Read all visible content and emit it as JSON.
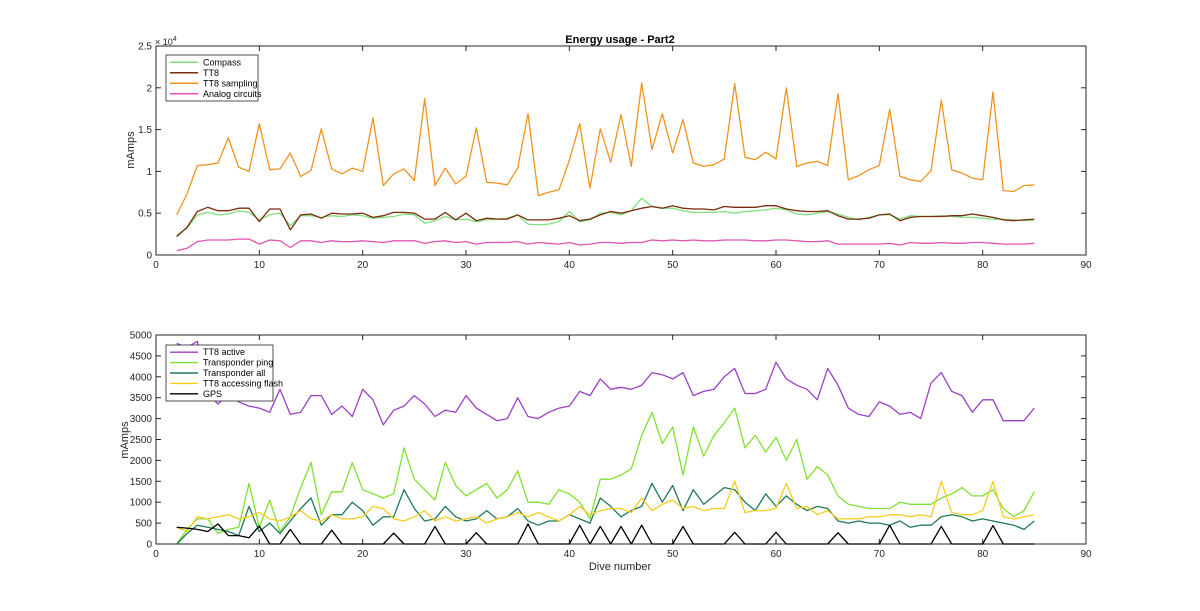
{
  "chart_data": [
    {
      "type": "line",
      "title": "Energy usage - Part2",
      "xlabel": "",
      "ylabel": "mAmps",
      "xlim": [
        0,
        90
      ],
      "ylim": [
        0,
        25000
      ],
      "xticks": [
        0,
        10,
        20,
        30,
        40,
        50,
        60,
        70,
        80,
        90
      ],
      "yticks": [
        0,
        5000,
        10000,
        15000,
        20000,
        25000
      ],
      "ytick_labels": [
        "0",
        "0.5",
        "1",
        "1.5",
        "2",
        "2.5"
      ],
      "y_exponent_label": "× 10",
      "y_exponent_power": "4",
      "legend_position": "top-left",
      "grid": false,
      "x": [
        2,
        3,
        4,
        5,
        6,
        7,
        8,
        9,
        10,
        11,
        12,
        13,
        14,
        15,
        16,
        17,
        18,
        19,
        20,
        21,
        22,
        23,
        24,
        25,
        26,
        27,
        28,
        29,
        30,
        31,
        32,
        33,
        34,
        35,
        36,
        37,
        38,
        39,
        40,
        41,
        42,
        43,
        44,
        45,
        46,
        47,
        48,
        49,
        50,
        51,
        52,
        53,
        54,
        55,
        56,
        57,
        58,
        59,
        60,
        61,
        62,
        63,
        64,
        65,
        66,
        67,
        68,
        69,
        70,
        71,
        72,
        73,
        74,
        75,
        76,
        77,
        78,
        79,
        80,
        81,
        82,
        83,
        84,
        85
      ],
      "series": [
        {
          "name": "Compass",
          "color": "#7fe07f",
          "values": [
            2400,
            3200,
            4800,
            5100,
            4800,
            4900,
            5300,
            5100,
            4200,
            4800,
            5000,
            3500,
            4700,
            4700,
            4500,
            4700,
            4600,
            4800,
            4700,
            4400,
            4500,
            4600,
            4900,
            4800,
            3800,
            4100,
            4600,
            4200,
            4300,
            4000,
            4200,
            4300,
            4400,
            4800,
            3700,
            3600,
            3700,
            4000,
            5200,
            4000,
            4200,
            5000,
            5100,
            4800,
            5300,
            6800,
            5800,
            5600,
            5600,
            5300,
            5100,
            5100,
            5100,
            5200,
            5000,
            5200,
            5300,
            5400,
            5600,
            5400,
            4900,
            4800,
            5000,
            5200,
            4900,
            4500,
            4200,
            4500,
            4800,
            4800,
            4300,
            4700,
            4600,
            4600,
            4700,
            4600,
            4500,
            4500,
            4400,
            4300,
            4300,
            4200,
            4100,
            4200
          ]
        },
        {
          "name": "TT8",
          "color": "#7b2c0f",
          "values": [
            2200,
            3300,
            5200,
            5700,
            5300,
            5300,
            5600,
            5600,
            4000,
            5500,
            5500,
            3000,
            4800,
            4900,
            4400,
            5000,
            4900,
            4900,
            5000,
            4500,
            4700,
            5100,
            5100,
            5000,
            4300,
            4300,
            5100,
            4200,
            5000,
            4100,
            4400,
            4300,
            4300,
            4800,
            4200,
            4200,
            4200,
            4400,
            4700,
            4100,
            4300,
            4800,
            5200,
            5000,
            5300,
            5600,
            5800,
            5600,
            5900,
            5600,
            5500,
            5500,
            5400,
            5800,
            5700,
            5700,
            5700,
            5900,
            5900,
            5500,
            5300,
            5200,
            5200,
            5300,
            4700,
            4300,
            4300,
            4400,
            4800,
            4900,
            4100,
            4500,
            4600,
            4600,
            4600,
            4700,
            4700,
            4900,
            4700,
            4500,
            4200,
            4100,
            4200,
            4300
          ]
        },
        {
          "name": "TT8 sampling",
          "color": "#f0931e",
          "values": [
            4800,
            7300,
            10700,
            10800,
            11000,
            14000,
            10500,
            10000,
            15700,
            10200,
            10300,
            12200,
            9400,
            10100,
            15100,
            10300,
            9700,
            10400,
            10000,
            16400,
            8300,
            9700,
            10300,
            8900,
            18700,
            8300,
            10400,
            8500,
            9400,
            15200,
            8700,
            8600,
            8400,
            10400,
            16900,
            7100,
            7500,
            7800,
            11300,
            15700,
            8000,
            15100,
            11100,
            16800,
            10600,
            20600,
            12600,
            16900,
            12200,
            16200,
            11000,
            10600,
            10800,
            11500,
            20500,
            11700,
            11400,
            12300,
            11500,
            20000,
            10600,
            11000,
            11200,
            10700,
            19300,
            9000,
            9500,
            10200,
            10700,
            17400,
            9400,
            9000,
            8800,
            10100,
            18500,
            10200,
            9800,
            9200,
            9000,
            19500,
            7700,
            7600,
            8300,
            8400
          ]
        },
        {
          "name": "Analog circuits",
          "color": "#e055b0",
          "values": [
            500,
            800,
            1600,
            1800,
            1800,
            1800,
            1900,
            1900,
            1300,
            1800,
            1700,
            900,
            1700,
            1700,
            1500,
            1700,
            1600,
            1600,
            1700,
            1600,
            1500,
            1700,
            1700,
            1700,
            1400,
            1600,
            1700,
            1500,
            1600,
            1300,
            1500,
            1500,
            1500,
            1600,
            1300,
            1500,
            1400,
            1300,
            1500,
            1200,
            1300,
            1500,
            1500,
            1400,
            1500,
            1500,
            1800,
            1700,
            1800,
            1700,
            1800,
            1700,
            1700,
            1800,
            1800,
            1800,
            1700,
            1700,
            1800,
            1800,
            1700,
            1600,
            1600,
            1700,
            1300,
            1300,
            1300,
            1300,
            1300,
            1400,
            1200,
            1500,
            1400,
            1400,
            1500,
            1400,
            1400,
            1500,
            1500,
            1400,
            1300,
            1300,
            1300,
            1400
          ]
        }
      ]
    },
    {
      "type": "line",
      "title": "",
      "xlabel": "Dive number",
      "ylabel": "mAmps",
      "xlim": [
        0,
        90
      ],
      "ylim": [
        0,
        5000
      ],
      "xticks": [
        0,
        10,
        20,
        30,
        40,
        50,
        60,
        70,
        80,
        90
      ],
      "yticks": [
        0,
        500,
        1000,
        1500,
        2000,
        2500,
        3000,
        3500,
        4000,
        4500,
        5000
      ],
      "legend_position": "top-left",
      "grid": false,
      "x": [
        2,
        3,
        4,
        5,
        6,
        7,
        8,
        9,
        10,
        11,
        12,
        13,
        14,
        15,
        16,
        17,
        18,
        19,
        20,
        21,
        22,
        23,
        24,
        25,
        26,
        27,
        28,
        29,
        30,
        31,
        32,
        33,
        34,
        35,
        36,
        37,
        38,
        39,
        40,
        41,
        42,
        43,
        44,
        45,
        46,
        47,
        48,
        49,
        50,
        51,
        52,
        53,
        54,
        55,
        56,
        57,
        58,
        59,
        60,
        61,
        62,
        63,
        64,
        65,
        66,
        67,
        68,
        69,
        70,
        71,
        72,
        73,
        74,
        75,
        76,
        77,
        78,
        79,
        80,
        81,
        82,
        83,
        84,
        85
      ],
      "series": [
        {
          "name": "TT8 active",
          "color": "#9b3fc9",
          "values": [
            4800,
            4700,
            4850,
            3600,
            3350,
            3600,
            3400,
            3300,
            3250,
            3150,
            3700,
            3100,
            3150,
            3550,
            3550,
            3100,
            3300,
            3050,
            3700,
            3450,
            2850,
            3200,
            3300,
            3550,
            3350,
            3050,
            3200,
            3150,
            3550,
            3250,
            3100,
            2950,
            3000,
            3500,
            3050,
            3000,
            3150,
            3250,
            3300,
            3650,
            3550,
            3950,
            3700,
            3750,
            3700,
            3800,
            4100,
            4050,
            3950,
            4100,
            3550,
            3650,
            3700,
            4000,
            4200,
            3600,
            3600,
            3700,
            4350,
            3950,
            3800,
            3700,
            3450,
            4200,
            3800,
            3250,
            3100,
            3050,
            3400,
            3300,
            3100,
            3150,
            3000,
            3850,
            4100,
            3650,
            3550,
            3150,
            3450,
            3450,
            2950,
            2950,
            2950,
            3250
          ]
        },
        {
          "name": "Transponder ping",
          "color": "#7fe032",
          "values": [
            0,
            350,
            600,
            600,
            250,
            350,
            400,
            1450,
            400,
            1050,
            300,
            650,
            1350,
            1950,
            700,
            1250,
            1250,
            1950,
            1300,
            1200,
            1100,
            1200,
            2300,
            1550,
            1300,
            1050,
            1950,
            1400,
            1150,
            1300,
            1450,
            1100,
            1300,
            1750,
            1000,
            1000,
            950,
            1300,
            1200,
            1000,
            600,
            1550,
            1550,
            1650,
            1800,
            2600,
            3150,
            2400,
            2800,
            1650,
            2800,
            2100,
            2600,
            2900,
            3250,
            2300,
            2600,
            2200,
            2550,
            2000,
            2500,
            1550,
            1850,
            1650,
            1150,
            950,
            900,
            850,
            850,
            850,
            1000,
            950,
            950,
            950,
            1100,
            1200,
            1350,
            1150,
            1150,
            1300,
            850,
            650,
            800,
            1250
          ]
        },
        {
          "name": "Transponder all",
          "color": "#1f7a55",
          "values": [
            0,
            250,
            450,
            400,
            350,
            300,
            200,
            900,
            300,
            500,
            250,
            550,
            850,
            1100,
            450,
            700,
            700,
            1000,
            800,
            450,
            650,
            650,
            1300,
            850,
            550,
            600,
            900,
            650,
            550,
            600,
            800,
            600,
            650,
            850,
            550,
            450,
            550,
            550,
            700,
            600,
            500,
            1100,
            900,
            650,
            800,
            900,
            1450,
            1000,
            1400,
            800,
            1300,
            950,
            1150,
            1350,
            1300,
            1000,
            800,
            1200,
            900,
            1150,
            950,
            800,
            900,
            850,
            550,
            500,
            550,
            500,
            500,
            450,
            550,
            400,
            450,
            450,
            650,
            700,
            650,
            550,
            600,
            550,
            500,
            450,
            350,
            550
          ]
        },
        {
          "name": "TT8 accessing flash",
          "color": "#f7cc1f",
          "values": [
            400,
            300,
            650,
            600,
            650,
            700,
            600,
            650,
            750,
            600,
            550,
            650,
            800,
            600,
            550,
            700,
            600,
            600,
            650,
            900,
            850,
            600,
            550,
            650,
            800,
            550,
            650,
            550,
            600,
            650,
            500,
            600,
            650,
            750,
            650,
            750,
            650,
            550,
            700,
            900,
            700,
            800,
            850,
            850,
            750,
            1100,
            800,
            950,
            1050,
            850,
            900,
            800,
            850,
            850,
            1500,
            750,
            800,
            800,
            850,
            1450,
            850,
            900,
            700,
            800,
            600,
            600,
            600,
            650,
            650,
            700,
            700,
            650,
            700,
            650,
            1500,
            750,
            700,
            700,
            800,
            1500,
            650,
            600,
            650,
            700
          ]
        },
        {
          "name": "GPS",
          "color": "#000000",
          "values": [
            400,
            380,
            350,
            300,
            480,
            200,
            200,
            150,
            430,
            0,
            0,
            350,
            0,
            0,
            0,
            330,
            0,
            0,
            0,
            0,
            0,
            260,
            0,
            0,
            0,
            420,
            0,
            0,
            0,
            270,
            0,
            0,
            0,
            0,
            480,
            0,
            0,
            0,
            0,
            450,
            0,
            420,
            0,
            420,
            0,
            450,
            0,
            0,
            0,
            420,
            0,
            0,
            0,
            0,
            280,
            0,
            0,
            0,
            280,
            0,
            0,
            0,
            0,
            0,
            270,
            0,
            0,
            0,
            0,
            450,
            0,
            0,
            0,
            0,
            420,
            0,
            0,
            0,
            0,
            440,
            0,
            0,
            0,
            0
          ]
        }
      ]
    }
  ]
}
